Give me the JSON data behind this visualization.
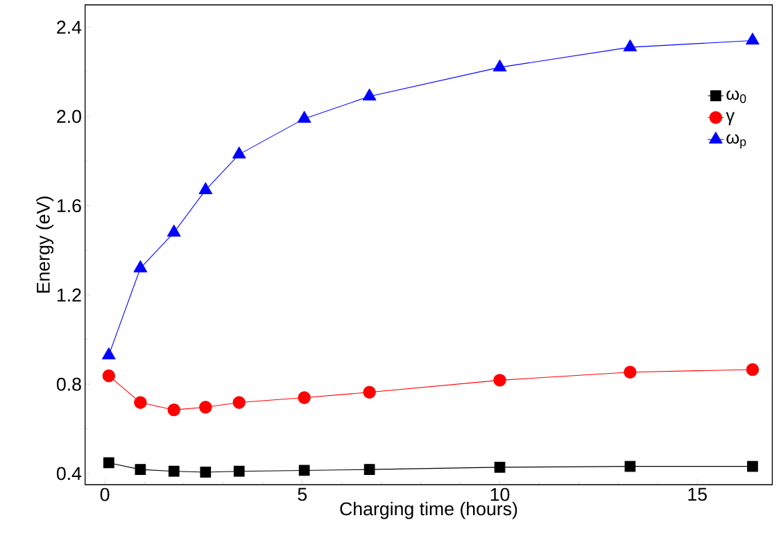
{
  "chart_data": {
    "type": "line",
    "xlabel": "Charging time (hours)",
    "ylabel": "Energy (eV)",
    "x": [
      0.1,
      0.9,
      1.75,
      2.55,
      3.4,
      5.05,
      6.7,
      10.0,
      13.3,
      16.4
    ],
    "series": [
      {
        "name": "ω$_{0}$",
        "color": "#000000",
        "marker": "square",
        "values": [
          0.448,
          0.418,
          0.41,
          0.406,
          0.41,
          0.414,
          0.418,
          0.428,
          0.432,
          0.432
        ]
      },
      {
        "name": "γ",
        "color": "#ff0000",
        "marker": "circle",
        "values": [
          0.838,
          0.718,
          0.685,
          0.697,
          0.718,
          0.74,
          0.764,
          0.818,
          0.854,
          0.866
        ]
      },
      {
        "name": "ω$_{p}$",
        "color": "#0000ff",
        "marker": "triangle",
        "values": [
          0.93,
          1.32,
          1.48,
          1.67,
          1.83,
          1.99,
          2.09,
          2.22,
          2.31,
          2.34
        ]
      }
    ],
    "xlim": [
      -0.5,
      16.9
    ],
    "ylim": [
      0.35,
      2.5
    ],
    "xticks": [
      0,
      5,
      10,
      15
    ],
    "yticks": [
      {
        "value": 0.4,
        "label": "0.4"
      },
      {
        "value": 0.8,
        "label": "0.8"
      },
      {
        "value": 1.2,
        "label": "1.2"
      },
      {
        "value": 1.6,
        "label": "1.6"
      },
      {
        "value": 2.0,
        "label": "2.0"
      },
      {
        "value": 2.4,
        "label": "2.4"
      }
    ],
    "legend": "top right",
    "grid": false,
    "line_style": "solid"
  }
}
